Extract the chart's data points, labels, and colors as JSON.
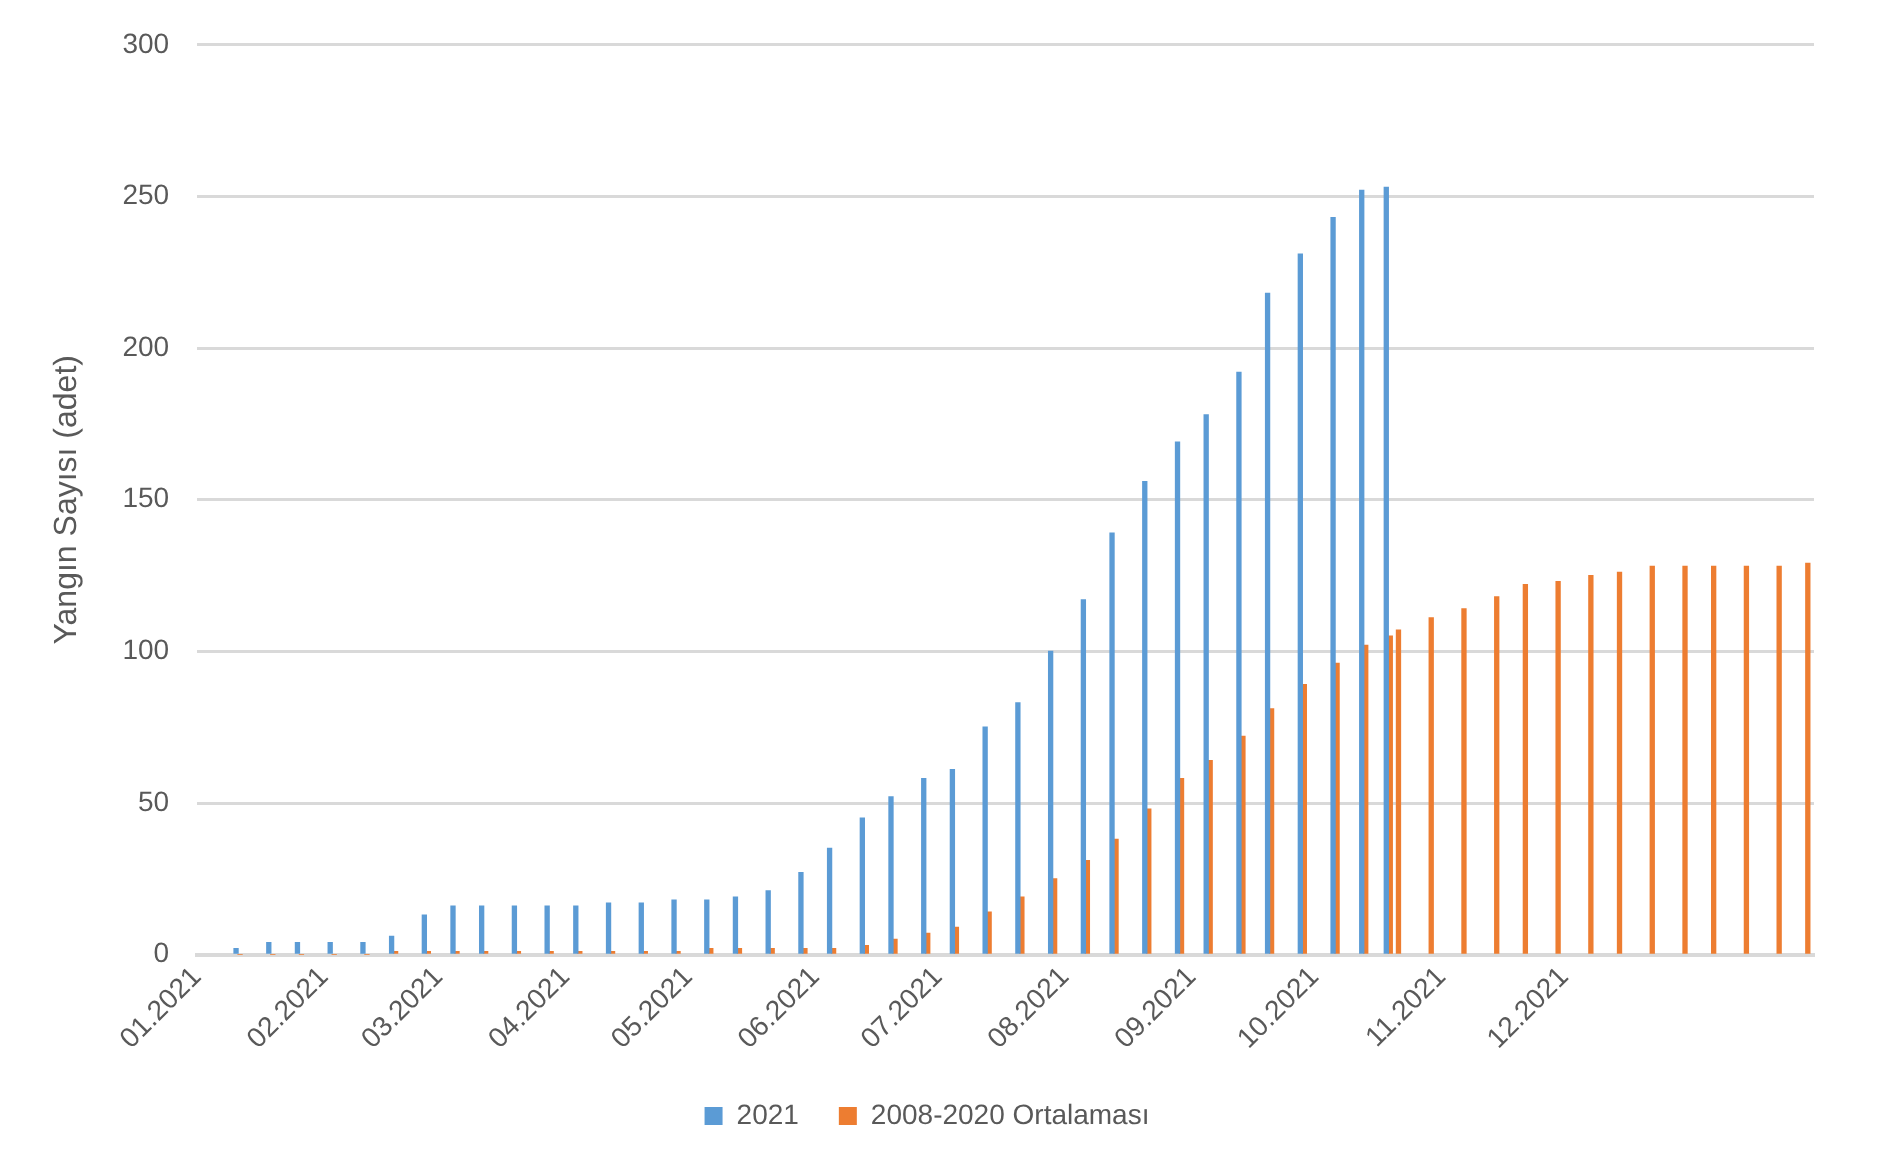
{
  "chart_data": {
    "type": "bar",
    "ylabel": "Yangın Sayısı (adet)",
    "x": [
      "2021-01-11",
      "2021-01-19",
      "2021-01-26",
      "2021-02-03",
      "2021-02-11",
      "2021-02-18",
      "2021-02-26",
      "2021-03-05",
      "2021-03-12",
      "2021-03-20",
      "2021-03-28",
      "2021-04-04",
      "2021-04-12",
      "2021-04-20",
      "2021-04-28",
      "2021-05-06",
      "2021-05-13",
      "2021-05-21",
      "2021-05-29",
      "2021-06-05",
      "2021-06-13",
      "2021-06-20",
      "2021-06-28",
      "2021-07-05",
      "2021-07-13",
      "2021-07-21",
      "2021-07-29",
      "2021-08-06",
      "2021-08-13",
      "2021-08-21",
      "2021-08-29",
      "2021-09-05",
      "2021-09-13",
      "2021-09-20",
      "2021-09-28",
      "2021-10-06",
      "2021-10-13",
      "2021-10-19",
      "2021-10-21",
      "2021-10-29",
      "2021-11-06",
      "2021-11-14",
      "2021-11-21",
      "2021-11-29",
      "2021-12-07",
      "2021-12-14",
      "2021-12-22",
      "2021-12-30",
      "2022-01-06",
      "2022-01-14",
      "2022-01-22",
      "2022-01-29"
    ],
    "series": [
      {
        "name": "2021",
        "color": "#5b9bd5",
        "values": [
          2,
          4,
          4,
          4,
          4,
          6,
          13,
          16,
          16,
          16,
          16,
          16,
          17,
          17,
          18,
          18,
          19,
          21,
          27,
          35,
          45,
          52,
          58,
          61,
          75,
          83,
          100,
          117,
          139,
          156,
          169,
          178,
          192,
          218,
          231,
          243,
          252,
          253,
          null,
          null,
          null,
          null,
          null,
          null,
          null,
          null,
          null,
          null,
          null,
          null,
          null,
          null
        ]
      },
      {
        "name": "2008-2020 Ortalaması",
        "color": "#ed7d31",
        "values": [
          0,
          0,
          0,
          0,
          0,
          1,
          1,
          1,
          1,
          1,
          1,
          1,
          1,
          1,
          1,
          2,
          2,
          2,
          2,
          2,
          3,
          5,
          7,
          9,
          14,
          19,
          25,
          31,
          38,
          48,
          58,
          64,
          72,
          81,
          89,
          96,
          102,
          105,
          107,
          111,
          114,
          118,
          122,
          123,
          125,
          126,
          128,
          128,
          128,
          128,
          128,
          129
        ]
      }
    ],
    "xlim": [
      "2021-01-01",
      "2022-01-31"
    ],
    "xticks": [
      {
        "value": "2021-01-01",
        "label": "01.2021"
      },
      {
        "value": "2021-02-01",
        "label": "02.2021"
      },
      {
        "value": "2021-03-01",
        "label": "03.2021"
      },
      {
        "value": "2021-04-01",
        "label": "04.2021"
      },
      {
        "value": "2021-05-01",
        "label": "05.2021"
      },
      {
        "value": "2021-06-01",
        "label": "06.2021"
      },
      {
        "value": "2021-07-01",
        "label": "07.2021"
      },
      {
        "value": "2021-08-01",
        "label": "08.2021"
      },
      {
        "value": "2021-09-01",
        "label": "09.2021"
      },
      {
        "value": "2021-10-01",
        "label": "10.2021"
      },
      {
        "value": "2021-11-01",
        "label": "11.2021"
      },
      {
        "value": "2021-12-01",
        "label": "12.2021"
      }
    ],
    "ylim": [
      0,
      300
    ],
    "yticks": [
      0,
      50,
      100,
      150,
      200,
      250,
      300
    ],
    "grid": "y",
    "legend": "bottom"
  }
}
